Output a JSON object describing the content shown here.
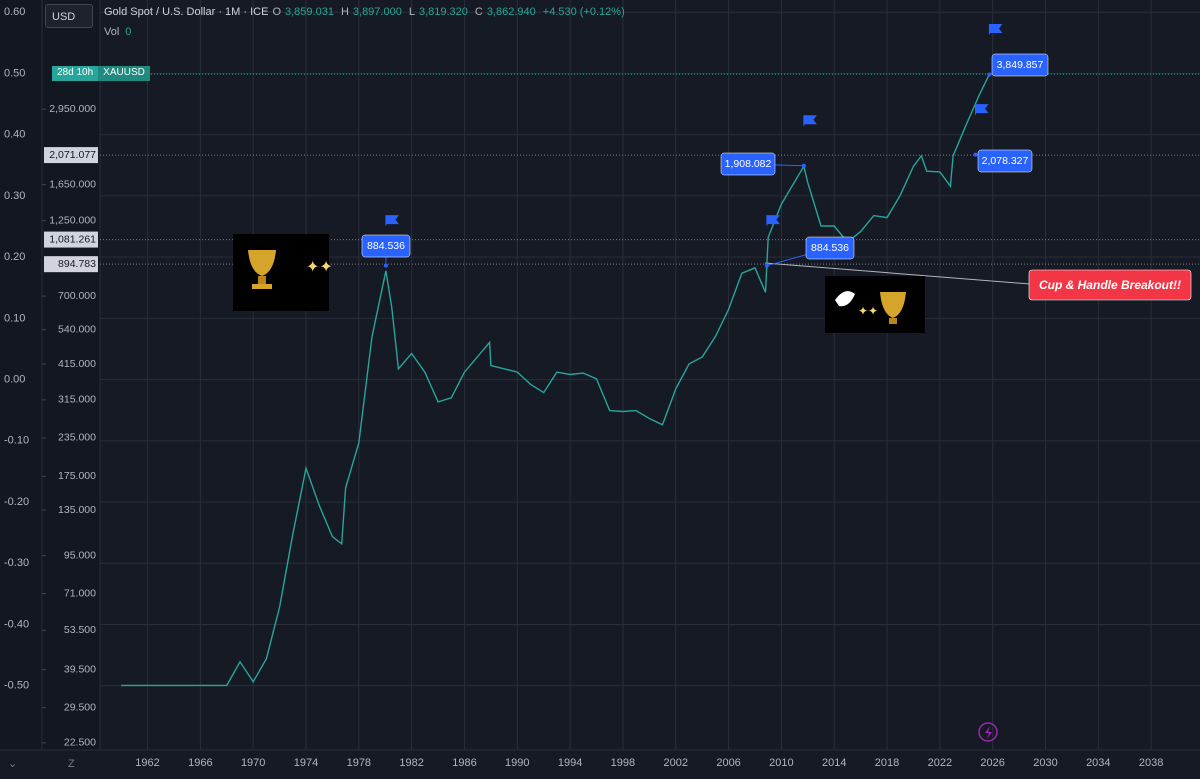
{
  "toolbar": {
    "currency": "USD",
    "bottom_icon": "Z"
  },
  "header": {
    "symbol": "Gold Spot / U.S. Dollar · 1M · ICE",
    "open_key": "O",
    "open": "3,859.031",
    "high_key": "H",
    "high": "3,897.000",
    "low_key": "L",
    "low": "3,819.320",
    "close_key": "C",
    "close": "3,862.940",
    "change": "+4.530 (+0.12%)",
    "volume_key": "Vol",
    "volume": "0"
  },
  "chart_data": {
    "type": "line",
    "x": [
      1960,
      1968,
      1969,
      1970,
      1971,
      1972,
      1973,
      1974,
      1975,
      1976,
      1976.7,
      1977,
      1978,
      1979,
      1980.05,
      1980.5,
      1981,
      1982,
      1983,
      1984,
      1985,
      1986,
      1987.9,
      1988,
      1989,
      1990,
      1991,
      1992,
      1993,
      1994,
      1995,
      1996,
      1997,
      1998,
      1999,
      2000,
      2001,
      2002,
      2003,
      2004,
      2005,
      2006,
      2007,
      2008,
      2008.8,
      2009,
      2010,
      2011.7,
      2012,
      2013,
      2014,
      2015,
      2016,
      2017,
      2018,
      2019,
      2020,
      2020.6,
      2021,
      2022,
      2022.8,
      2023,
      2024,
      2025,
      2025.75
    ],
    "values": [
      35,
      35,
      42,
      36,
      43,
      64,
      112,
      186,
      140,
      110,
      104,
      160,
      226,
      512,
      850,
      640,
      400,
      450,
      390,
      310,
      320,
      390,
      490,
      410,
      400,
      390,
      355,
      333,
      390,
      383,
      387,
      370,
      290,
      288,
      290,
      273,
      260,
      343,
      415,
      438,
      513,
      632,
      834,
      870,
      720,
      1100,
      1420,
      1900,
      1675,
      1200,
      1200,
      1060,
      1150,
      1300,
      1280,
      1520,
      1900,
      2060,
      1830,
      1820,
      1630,
      2060,
      2620,
      3300,
      3860
    ],
    "color": "#26a69a",
    "log_scale": true,
    "grid": true,
    "xlim": [
      1958.4,
      2041.7
    ],
    "xticks": [
      1962,
      1966,
      1970,
      1974,
      1978,
      1982,
      1986,
      1990,
      1994,
      1998,
      2002,
      2006,
      2010,
      2014,
      2018,
      2022,
      2026,
      2030,
      2034,
      2038
    ],
    "ylim": [
      21.3,
      6830
    ],
    "yticks": [
      {
        "value": 22.5,
        "label": "22.500"
      },
      {
        "value": 29.5,
        "label": "29.500"
      },
      {
        "value": 39.5,
        "label": "39.500"
      },
      {
        "value": 53.5,
        "label": "53.500"
      },
      {
        "value": 71,
        "label": "71.000"
      },
      {
        "value": 95,
        "label": "95.000"
      },
      {
        "value": 135,
        "label": "135.000"
      },
      {
        "value": 175,
        "label": "175.000"
      },
      {
        "value": 235,
        "label": "235.000"
      },
      {
        "value": 315,
        "label": "315.000"
      },
      {
        "value": 415,
        "label": "415.000"
      },
      {
        "value": 540,
        "label": "540.000"
      },
      {
        "value": 700,
        "label": "700.000"
      },
      {
        "value": 1250,
        "label": "1,250.000"
      },
      {
        "value": 1650,
        "label": "1,650.000"
      },
      {
        "value": 2950,
        "label": "2,950.000"
      }
    ],
    "y2lim": [
      -0.605,
      0.62
    ],
    "y2ticks": [
      {
        "value": 0.6,
        "label": "0.60"
      },
      {
        "value": 0.5,
        "label": "0.50"
      },
      {
        "value": 0.4,
        "label": "0.40"
      },
      {
        "value": 0.3,
        "label": "0.30"
      },
      {
        "value": 0.2,
        "label": "0.20"
      },
      {
        "value": 0.1,
        "label": "0.10"
      },
      {
        "value": 0,
        "label": "0.00"
      },
      {
        "value": -0.1,
        "label": "-0.10"
      },
      {
        "value": -0.2,
        "label": "-0.20"
      },
      {
        "value": -0.3,
        "label": "-0.30"
      },
      {
        "value": -0.4,
        "label": "-0.40"
      },
      {
        "value": -0.5,
        "label": "-0.50"
      }
    ],
    "levels": [
      {
        "value": 2071.077,
        "label": "2,071.077"
      },
      {
        "value": 1081.261,
        "label": "1,081.261"
      },
      {
        "value": 894.783,
        "label": "894.783"
      }
    ],
    "price_tag": {
      "countdown": "28d 10h",
      "symbol": "XAUUSD"
    },
    "callouts": [
      {
        "value": 884.536,
        "label": "884.536"
      },
      {
        "value": 1908.082,
        "label": "1,908.082"
      },
      {
        "value": 884.536,
        "label": "884.536"
      },
      {
        "value": 2078.327,
        "label": "2,078.327"
      },
      {
        "value": 3849.857,
        "label": "3,849.857"
      }
    ],
    "breakout_label": "Cup & Handle Breakout!!"
  }
}
